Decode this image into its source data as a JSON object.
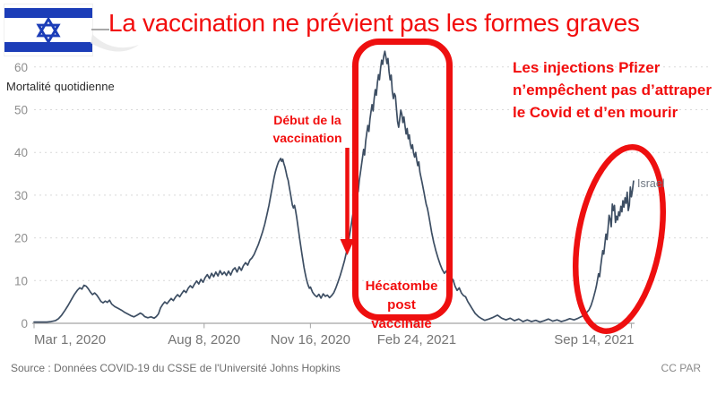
{
  "slide": {
    "title": "La vaccination ne prévient pas les formes graves",
    "flag": "israel-flag"
  },
  "annotations": {
    "vaccination_start": {
      "lines": [
        "Début de la",
        "vaccination"
      ]
    },
    "hecatombe": {
      "lines": [
        "Hécatombe post",
        "vaccinale"
      ]
    },
    "pfizer": {
      "lines": [
        "Les injections Pfizer",
        "n’empêchent pas d’attraper",
        "le Covid et d’en mourir"
      ]
    }
  },
  "footer": {
    "source": "Source : Données COVID-19 du CSSE de l'Université Johns Hopkins",
    "license": "CC PAR"
  },
  "colors": {
    "annotation_red": "#f20d0d",
    "shape_red": "#ee0f0f",
    "line": "#3d4e63",
    "flag_blue": "#1c3db8",
    "grid": "#d9d9d9",
    "axis": "#a3a3a3",
    "tick_label": "#757575",
    "y_tick_label": "#8f8f8f"
  },
  "chart_data": {
    "type": "line",
    "title": "",
    "ylabel": "Mortalité quotidienne",
    "series_label": "Israel",
    "x_unit": "days since Mar 1, 2020",
    "x_ticks": [
      {
        "day": 0,
        "label": "Mar 1, 2020"
      },
      {
        "day": 160,
        "label": "Aug 8, 2020"
      },
      {
        "day": 260,
        "label": "Nov 16, 2020"
      },
      {
        "day": 360,
        "label": "Feb 24, 2021"
      },
      {
        "day": 562,
        "label": "Sep 14, 2021"
      }
    ],
    "y_ticks": [
      0,
      10,
      20,
      30,
      40,
      50,
      60
    ],
    "ylim": [
      0,
      64
    ],
    "xlim_days": [
      0,
      566
    ],
    "grid": "dashed-horizontal",
    "legend_position": "end-of-line",
    "line_color": "#3d4e63",
    "points": [
      [
        0,
        0.3
      ],
      [
        6,
        0.3
      ],
      [
        12,
        0.3
      ],
      [
        16,
        0.4
      ],
      [
        20,
        0.6
      ],
      [
        23,
        1.1
      ],
      [
        26,
        1.9
      ],
      [
        29,
        3.0
      ],
      [
        32,
        4.2
      ],
      [
        35,
        5.5
      ],
      [
        38,
        6.8
      ],
      [
        41,
        7.8
      ],
      [
        43,
        8.3
      ],
      [
        45,
        8.0
      ],
      [
        47,
        8.9
      ],
      [
        49,
        8.7
      ],
      [
        51,
        8.1
      ],
      [
        53,
        7.3
      ],
      [
        55,
        6.7
      ],
      [
        57,
        7.1
      ],
      [
        59,
        6.6
      ],
      [
        61,
        5.9
      ],
      [
        63,
        5.1
      ],
      [
        65,
        4.8
      ],
      [
        67,
        5.2
      ],
      [
        69,
        4.9
      ],
      [
        71,
        5.4
      ],
      [
        73,
        4.5
      ],
      [
        76,
        3.9
      ],
      [
        79,
        3.5
      ],
      [
        82,
        3.1
      ],
      [
        85,
        2.6
      ],
      [
        88,
        2.2
      ],
      [
        91,
        1.8
      ],
      [
        94,
        1.5
      ],
      [
        97,
        1.9
      ],
      [
        100,
        2.4
      ],
      [
        102,
        2.1
      ],
      [
        104,
        1.6
      ],
      [
        107,
        1.3
      ],
      [
        110,
        1.5
      ],
      [
        113,
        1.2
      ],
      [
        115,
        1.6
      ],
      [
        117,
        2.2
      ],
      [
        119,
        3.6
      ],
      [
        121,
        4.4
      ],
      [
        123,
        5.0
      ],
      [
        125,
        4.6
      ],
      [
        127,
        5.2
      ],
      [
        129,
        5.8
      ],
      [
        131,
        5.3
      ],
      [
        133,
        6.1
      ],
      [
        135,
        6.7
      ],
      [
        137,
        6.2
      ],
      [
        139,
        7.0
      ],
      [
        141,
        7.7
      ],
      [
        143,
        7.2
      ],
      [
        145,
        8.2
      ],
      [
        147,
        8.8
      ],
      [
        149,
        8.3
      ],
      [
        151,
        9.2
      ],
      [
        153,
        9.9
      ],
      [
        155,
        9.2
      ],
      [
        157,
        10.3
      ],
      [
        159,
        9.6
      ],
      [
        161,
        10.7
      ],
      [
        163,
        11.4
      ],
      [
        165,
        10.5
      ],
      [
        167,
        11.7
      ],
      [
        169,
        10.9
      ],
      [
        171,
        12.0
      ],
      [
        173,
        11.1
      ],
      [
        175,
        12.3
      ],
      [
        177,
        11.4
      ],
      [
        179,
        12.0
      ],
      [
        181,
        11.2
      ],
      [
        183,
        12.2
      ],
      [
        185,
        11.3
      ],
      [
        187,
        12.5
      ],
      [
        189,
        13.0
      ],
      [
        191,
        12.0
      ],
      [
        193,
        13.2
      ],
      [
        195,
        12.4
      ],
      [
        197,
        13.5
      ],
      [
        199,
        14.2
      ],
      [
        201,
        13.6
      ],
      [
        203,
        14.8
      ],
      [
        205,
        15.3
      ],
      [
        207,
        16.1
      ],
      [
        209,
        17.3
      ],
      [
        211,
        18.4
      ],
      [
        213,
        19.9
      ],
      [
        215,
        21.4
      ],
      [
        217,
        23.2
      ],
      [
        219,
        25.3
      ],
      [
        221,
        27.6
      ],
      [
        222,
        29.0
      ],
      [
        223,
        30.4
      ],
      [
        224,
        31.7
      ],
      [
        225,
        33.0
      ],
      [
        226,
        34.3
      ],
      [
        227,
        35.4
      ],
      [
        228,
        36.3
      ],
      [
        229,
        37.1
      ],
      [
        230,
        37.8
      ],
      [
        231,
        38.2
      ],
      [
        232,
        38.6
      ],
      [
        233,
        37.9
      ],
      [
        234,
        38.4
      ],
      [
        235,
        37.4
      ],
      [
        236,
        36.6
      ],
      [
        237,
        35.5
      ],
      [
        238,
        34.3
      ],
      [
        239,
        33.5
      ],
      [
        240,
        32.1
      ],
      [
        241,
        30.7
      ],
      [
        242,
        29.2
      ],
      [
        243,
        27.7
      ],
      [
        244,
        27.0
      ],
      [
        245,
        27.6
      ],
      [
        246,
        26.4
      ],
      [
        247,
        25.0
      ],
      [
        248,
        23.2
      ],
      [
        249,
        21.4
      ],
      [
        250,
        19.6
      ],
      [
        251,
        17.9
      ],
      [
        252,
        16.2
      ],
      [
        253,
        14.6
      ],
      [
        254,
        13.1
      ],
      [
        255,
        11.8
      ],
      [
        256,
        10.6
      ],
      [
        257,
        9.6
      ],
      [
        258,
        8.8
      ],
      [
        259,
        8.2
      ],
      [
        260,
        8.5
      ],
      [
        262,
        7.3
      ],
      [
        264,
        6.6
      ],
      [
        266,
        6.2
      ],
      [
        268,
        6.8
      ],
      [
        270,
        5.9
      ],
      [
        272,
        6.9
      ],
      [
        274,
        6.3
      ],
      [
        276,
        6.6
      ],
      [
        278,
        6.0
      ],
      [
        280,
        6.5
      ],
      [
        282,
        7.2
      ],
      [
        284,
        8.3
      ],
      [
        286,
        9.7
      ],
      [
        288,
        11.2
      ],
      [
        290,
        12.8
      ],
      [
        292,
        14.6
      ],
      [
        294,
        16.8
      ],
      [
        296,
        19.4
      ],
      [
        298,
        22.4
      ],
      [
        300,
        25.6
      ],
      [
        301,
        27.3
      ],
      [
        302,
        29.0
      ],
      [
        303,
        30.5
      ],
      [
        304,
        32.0
      ],
      [
        305,
        30.8
      ],
      [
        306,
        33.5
      ],
      [
        307,
        35.2
      ],
      [
        308,
        37.0
      ],
      [
        309,
        38.8
      ],
      [
        310,
        40.7
      ],
      [
        311,
        39.4
      ],
      [
        312,
        42.6
      ],
      [
        313,
        44.5
      ],
      [
        314,
        46.3
      ],
      [
        315,
        44.9
      ],
      [
        316,
        47.8
      ],
      [
        317,
        49.6
      ],
      [
        318,
        51.2
      ],
      [
        319,
        49.7
      ],
      [
        320,
        52.6
      ],
      [
        321,
        54.7
      ],
      [
        322,
        53.4
      ],
      [
        323,
        56.3
      ],
      [
        324,
        58.2
      ],
      [
        325,
        57.0
      ],
      [
        326,
        59.6
      ],
      [
        327,
        61.6
      ],
      [
        328,
        60.6
      ],
      [
        329,
        62.6
      ],
      [
        330,
        63.7
      ],
      [
        331,
        62.3
      ],
      [
        332,
        60.8
      ],
      [
        333,
        62.0
      ],
      [
        334,
        58.9
      ],
      [
        335,
        57.0
      ],
      [
        336,
        58.1
      ],
      [
        337,
        54.3
      ],
      [
        338,
        52.6
      ],
      [
        339,
        53.8
      ],
      [
        340,
        53.2
      ],
      [
        341,
        50.1
      ],
      [
        342,
        47.2
      ],
      [
        343,
        45.9
      ],
      [
        344,
        47.8
      ],
      [
        345,
        49.9
      ],
      [
        346,
        48.9
      ],
      [
        347,
        47.0
      ],
      [
        348,
        48.3
      ],
      [
        349,
        46.2
      ],
      [
        350,
        44.3
      ],
      [
        351,
        45.6
      ],
      [
        352,
        43.2
      ],
      [
        353,
        44.1
      ],
      [
        354,
        42.0
      ],
      [
        355,
        40.9
      ],
      [
        356,
        41.8
      ],
      [
        357,
        39.9
      ],
      [
        358,
        38.9
      ],
      [
        359,
        40.0
      ],
      [
        360,
        38.2
      ],
      [
        361,
        36.9
      ],
      [
        362,
        37.8
      ],
      [
        363,
        35.4
      ],
      [
        364,
        34.2
      ],
      [
        365,
        33.0
      ],
      [
        366,
        31.7
      ],
      [
        367,
        30.4
      ],
      [
        368,
        29.1
      ],
      [
        369,
        27.8
      ],
      [
        370,
        27.0
      ],
      [
        371,
        25.7
      ],
      [
        372,
        24.3
      ],
      [
        373,
        22.8
      ],
      [
        374,
        21.3
      ],
      [
        375,
        20.1
      ],
      [
        376,
        19.0
      ],
      [
        377,
        18.0
      ],
      [
        378,
        17.0
      ],
      [
        380,
        15.3
      ],
      [
        382,
        13.8
      ],
      [
        384,
        12.6
      ],
      [
        386,
        11.7
      ],
      [
        388,
        12.3
      ],
      [
        390,
        10.8
      ],
      [
        392,
        9.7
      ],
      [
        394,
        10.3
      ],
      [
        396,
        8.7
      ],
      [
        398,
        7.7
      ],
      [
        400,
        8.3
      ],
      [
        402,
        7.1
      ],
      [
        404,
        6.5
      ],
      [
        406,
        6.2
      ],
      [
        408,
        5.1
      ],
      [
        410,
        4.3
      ],
      [
        412,
        3.5
      ],
      [
        415,
        2.3
      ],
      [
        418,
        1.6
      ],
      [
        421,
        1.1
      ],
      [
        424,
        0.7
      ],
      [
        428,
        1.0
      ],
      [
        432,
        1.4
      ],
      [
        436,
        1.9
      ],
      [
        440,
        1.2
      ],
      [
        444,
        0.8
      ],
      [
        448,
        1.2
      ],
      [
        452,
        0.6
      ],
      [
        456,
        1.0
      ],
      [
        460,
        0.4
      ],
      [
        464,
        0.8
      ],
      [
        468,
        0.4
      ],
      [
        472,
        0.7
      ],
      [
        476,
        0.3
      ],
      [
        480,
        0.6
      ],
      [
        484,
        1.0
      ],
      [
        488,
        0.5
      ],
      [
        492,
        0.8
      ],
      [
        496,
        0.4
      ],
      [
        500,
        0.7
      ],
      [
        504,
        1.1
      ],
      [
        508,
        0.8
      ],
      [
        512,
        1.2
      ],
      [
        516,
        1.7
      ],
      [
        519,
        2.3
      ],
      [
        522,
        3.1
      ],
      [
        524,
        4.2
      ],
      [
        526,
        5.7
      ],
      [
        528,
        7.6
      ],
      [
        529,
        8.7
      ],
      [
        530,
        10.1
      ],
      [
        531,
        11.6
      ],
      [
        532,
        10.9
      ],
      [
        533,
        13.1
      ],
      [
        534,
        15.1
      ],
      [
        535,
        17.0
      ],
      [
        536,
        16.2
      ],
      [
        537,
        18.6
      ],
      [
        538,
        20.9
      ],
      [
        539,
        19.6
      ],
      [
        540,
        22.1
      ],
      [
        541,
        25.3
      ],
      [
        542,
        24.4
      ],
      [
        543,
        22.6
      ],
      [
        544,
        27.9
      ],
      [
        545,
        26.4
      ],
      [
        546,
        27.6
      ],
      [
        547,
        23.6
      ],
      [
        548,
        25.1
      ],
      [
        549,
        24.2
      ],
      [
        550,
        26.1
      ],
      [
        551,
        25.2
      ],
      [
        552,
        27.4
      ],
      [
        553,
        26.1
      ],
      [
        554,
        28.7
      ],
      [
        555,
        27.2
      ],
      [
        556,
        29.4
      ],
      [
        557,
        28.1
      ],
      [
        558,
        30.7
      ],
      [
        559,
        26.4
      ],
      [
        560,
        27.6
      ],
      [
        561,
        31.9
      ],
      [
        562,
        29.6
      ],
      [
        563,
        31.2
      ],
      [
        564,
        33.3
      ]
    ]
  }
}
